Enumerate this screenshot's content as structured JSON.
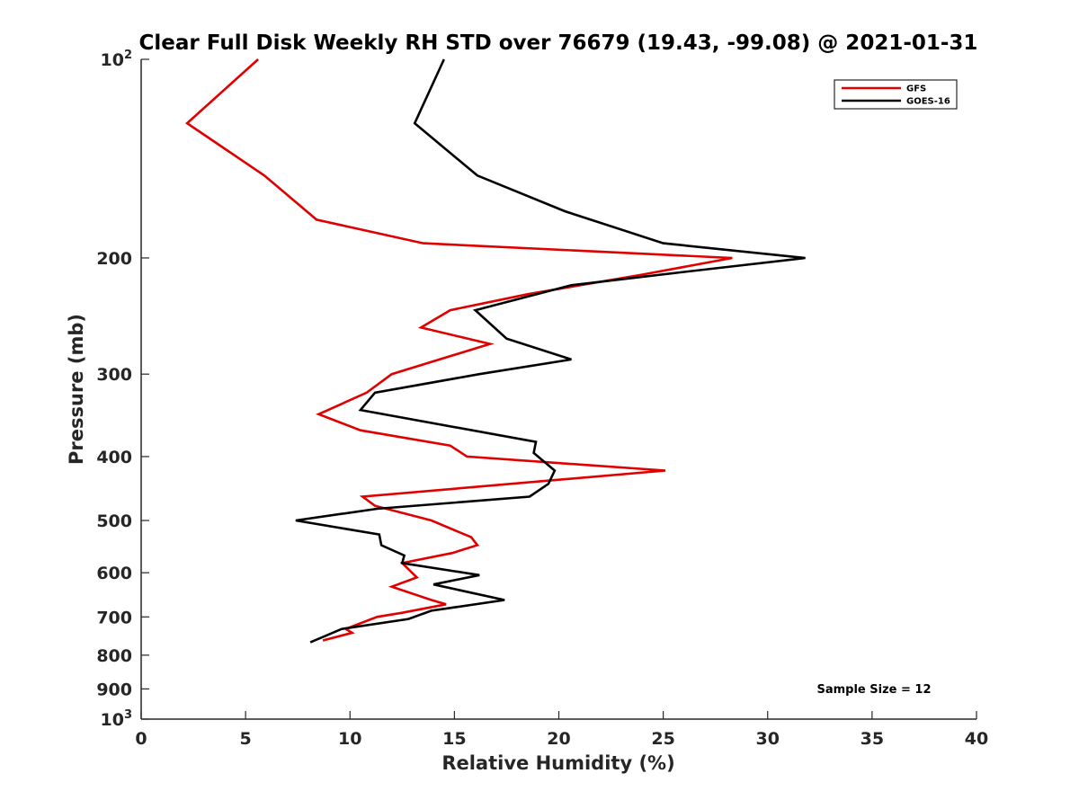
{
  "chart_data": {
    "type": "line",
    "title": "Clear Full Disk Weekly RH STD over 76679 (19.43, -99.08) @ 2021-01-31",
    "xlabel": "Relative Humidity (%)",
    "ylabel": "Pressure (mb)",
    "xlim": [
      0,
      40
    ],
    "ylim": [
      100,
      1000
    ],
    "y_scale": "log",
    "y_reversed": true,
    "x_ticks": [
      0,
      5,
      10,
      15,
      20,
      25,
      30,
      35,
      40
    ],
    "x_tick_labels": [
      "0",
      "5",
      "10",
      "15",
      "20",
      "25",
      "30",
      "35",
      "40"
    ],
    "y_ticks": [
      {
        "value": 100,
        "base": "10",
        "sup": "2"
      },
      {
        "value": 200,
        "label": "200"
      },
      {
        "value": 300,
        "label": "300"
      },
      {
        "value": 400,
        "label": "400"
      },
      {
        "value": 500,
        "label": "500"
      },
      {
        "value": 600,
        "label": "600"
      },
      {
        "value": 700,
        "label": "700"
      },
      {
        "value": 800,
        "label": "800"
      },
      {
        "value": 900,
        "label": "900"
      },
      {
        "value": 1000,
        "base": "10",
        "sup": "3"
      }
    ],
    "grid": false,
    "legend_position": "top-right",
    "series": [
      {
        "name": "GFS",
        "color": "#e00000",
        "points": [
          [
            5.6,
            100
          ],
          [
            2.2,
            125
          ],
          [
            5.9,
            150
          ],
          [
            8.4,
            175
          ],
          [
            13.5,
            190
          ],
          [
            28.3,
            200
          ],
          [
            24.0,
            212
          ],
          [
            18.5,
            227
          ],
          [
            14.8,
            240
          ],
          [
            13.4,
            255
          ],
          [
            16.7,
            270
          ],
          [
            12.0,
            300
          ],
          [
            10.8,
            320
          ],
          [
            8.5,
            345
          ],
          [
            10.5,
            365
          ],
          [
            14.8,
            385
          ],
          [
            15.6,
            400
          ],
          [
            25.1,
            420
          ],
          [
            10.6,
            460
          ],
          [
            11.2,
            475
          ],
          [
            13.9,
            500
          ],
          [
            15.8,
            530
          ],
          [
            16.1,
            545
          ],
          [
            14.9,
            560
          ],
          [
            12.5,
            580
          ],
          [
            13.2,
            610
          ],
          [
            12.0,
            630
          ],
          [
            13.9,
            660
          ],
          [
            14.6,
            670
          ],
          [
            12.5,
            690
          ],
          [
            11.3,
            700
          ],
          [
            9.8,
            730
          ],
          [
            10.1,
            740
          ],
          [
            8.7,
            760
          ]
        ]
      },
      {
        "name": "GOES-16",
        "color": "#000000",
        "points": [
          [
            14.5,
            100
          ],
          [
            13.1,
            125
          ],
          [
            16.1,
            150
          ],
          [
            20.3,
            170
          ],
          [
            25.0,
            190
          ],
          [
            31.8,
            200
          ],
          [
            26.0,
            210
          ],
          [
            20.6,
            220
          ],
          [
            16.0,
            240
          ],
          [
            17.5,
            265
          ],
          [
            20.6,
            285
          ],
          [
            16.2,
            300
          ],
          [
            11.2,
            320
          ],
          [
            10.5,
            340
          ],
          [
            18.9,
            380
          ],
          [
            18.8,
            395
          ],
          [
            19.8,
            420
          ],
          [
            19.5,
            440
          ],
          [
            18.6,
            460
          ],
          [
            11.3,
            480
          ],
          [
            7.4,
            500
          ],
          [
            11.4,
            525
          ],
          [
            11.5,
            545
          ],
          [
            12.6,
            565
          ],
          [
            12.5,
            580
          ],
          [
            16.2,
            605
          ],
          [
            14.0,
            625
          ],
          [
            17.4,
            660
          ],
          [
            13.9,
            685
          ],
          [
            12.8,
            705
          ],
          [
            9.6,
            730
          ],
          [
            8.1,
            765
          ]
        ]
      }
    ],
    "annotations": [
      "Sample Size = 12"
    ]
  }
}
